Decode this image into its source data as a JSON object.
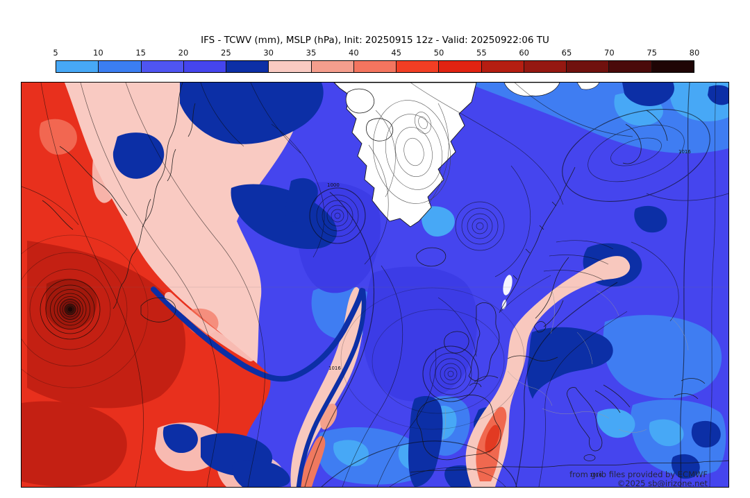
{
  "header": {
    "title": "IFS - TCWV (mm), MSLP (hPa), Init: 20250915 12z - Valid: 20250922:06 TU"
  },
  "colorbar": {
    "tick_labels": [
      "5",
      "10",
      "15",
      "20",
      "25",
      "30",
      "35",
      "40",
      "45",
      "50",
      "55",
      "60",
      "65",
      "70",
      "75",
      "80"
    ],
    "segment_colors": [
      "#47a8f6",
      "#3b7ef2",
      "#4f55f2",
      "#4545ee",
      "#0c2fa6",
      "#f9cac2",
      "#f59e8d",
      "#f4755f",
      "#f23e24",
      "#e12312",
      "#b51e12",
      "#951811",
      "#70110e",
      "#4a0a0a",
      "#1f0505"
    ]
  },
  "map": {
    "contour_labels": [
      {
        "text": "1000"
      },
      {
        "text": "1016"
      },
      {
        "text": "1016"
      },
      {
        "text": "1016"
      }
    ],
    "attribution": {
      "line1": "from grib files provided by ECMWF",
      "line2": "©2025 sb@irizone.net"
    }
  }
}
